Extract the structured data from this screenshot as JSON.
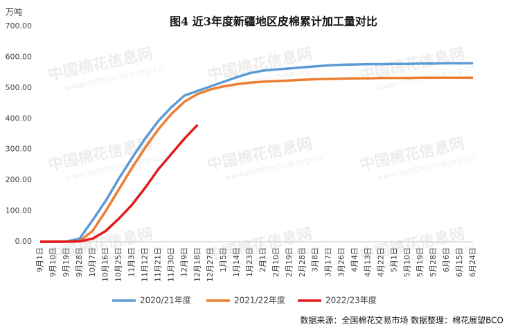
{
  "chart_data": {
    "type": "line",
    "title": "图4  近3年度新疆地区皮棉累计加工量对比",
    "y_label": "万吨",
    "source": "数据来源：全国棉花交易市场   数据整理：棉花展望BCO",
    "watermark": [
      "中国棉花信息网",
      "www.cottonchina.org.cn"
    ],
    "categories": [
      "9月1日",
      "9月10日",
      "9月19日",
      "9月28日",
      "10月7日",
      "10月16日",
      "10月25日",
      "11月3日",
      "11月12日",
      "11月21日",
      "11月30日",
      "12月9日",
      "12月18日",
      "12月27日",
      "1月5日",
      "1月14日",
      "1月23日",
      "2月1日",
      "2月10日",
      "2月19日",
      "2月28日",
      "3月8日",
      "3月17日",
      "3月26日",
      "4月4日",
      "4月13日",
      "4月22日",
      "5月1日",
      "5月10日",
      "5月19日",
      "5月28日",
      "6月6日",
      "6月15日",
      "6月24日"
    ],
    "series": [
      {
        "name": "2020/21年度",
        "color": "#5b9bd5",
        "values": [
          0,
          0,
          1,
          10,
          70,
          133,
          205,
          272,
          335,
          392,
          437,
          475,
          490,
          505,
          520,
          535,
          548,
          556,
          560,
          563,
          567,
          570,
          573,
          575,
          576,
          577,
          577,
          578,
          578,
          579,
          579,
          580,
          580,
          580
        ]
      },
      {
        "name": "2021/22年度",
        "color": "#ed7d31",
        "values": [
          0,
          0,
          0,
          2,
          35,
          100,
          170,
          240,
          305,
          365,
          415,
          455,
          480,
          495,
          505,
          512,
          517,
          520,
          522,
          524,
          526,
          528,
          529,
          530,
          531,
          531,
          532,
          532,
          532,
          533,
          533,
          533,
          533,
          533
        ]
      },
      {
        "name": "2022/23年度",
        "color": "#e31a1c",
        "values": [
          0,
          0,
          0,
          1,
          10,
          35,
          75,
          120,
          175,
          235,
          285,
          335,
          380,
          null,
          null,
          null,
          null,
          null,
          null,
          null,
          null,
          null,
          null,
          null,
          null,
          null,
          null,
          null,
          null,
          null,
          null,
          null,
          null,
          null
        ]
      }
    ],
    "ylim": [
      0,
      700
    ],
    "yticks": [
      {
        "value": 0,
        "label": "0.00"
      },
      {
        "value": 100,
        "label": "100.00"
      },
      {
        "value": 200,
        "label": "200.00"
      },
      {
        "value": 300,
        "label": "300.00"
      },
      {
        "value": 400,
        "label": "400.00"
      },
      {
        "value": 500,
        "label": "500.00"
      },
      {
        "value": 600,
        "label": "600.00"
      },
      {
        "value": 700,
        "label": "700.00"
      }
    ],
    "grid": false,
    "legend": "bottom"
  }
}
